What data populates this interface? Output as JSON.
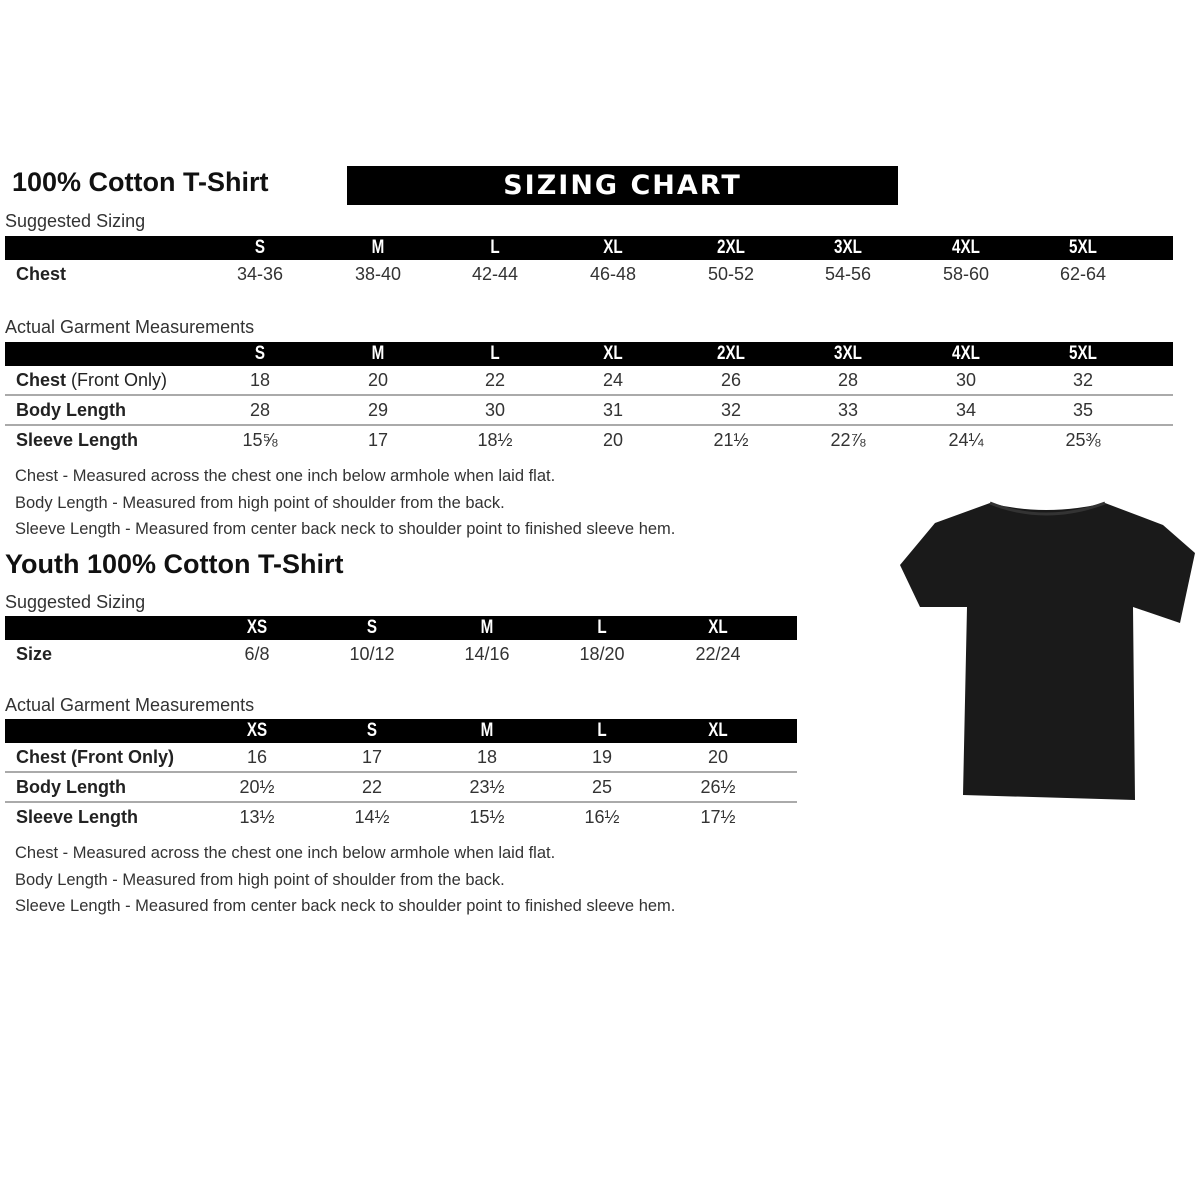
{
  "adult": {
    "title": "100% Cotton T-Shirt",
    "banner": "SIZING CHART",
    "suggested_label": "Suggested Sizing",
    "sizes": [
      "S",
      "M",
      "L",
      "XL",
      "2XL",
      "3XL",
      "4XL",
      "5XL"
    ],
    "suggested_rows": [
      {
        "label": "Chest",
        "values": [
          "34-36",
          "38-40",
          "42-44",
          "46-48",
          "50-52",
          "54-56",
          "58-60",
          "62-64"
        ]
      }
    ],
    "actual_label": "Actual Garment Measurements",
    "actual_rows": [
      {
        "label": "Chest",
        "label_note": " (Front Only)",
        "values": [
          "18",
          "20",
          "22",
          "24",
          "26",
          "28",
          "30",
          "32"
        ]
      },
      {
        "label": "Body Length",
        "values": [
          "28",
          "29",
          "30",
          "31",
          "32",
          "33",
          "34",
          "35"
        ]
      },
      {
        "label": "Sleeve Length",
        "values": [
          "15⅝",
          "17",
          "18½",
          "20",
          "21½",
          "22⅞",
          "24¼",
          "25⅜"
        ]
      }
    ],
    "notes": [
      "Chest - Measured across the chest one inch below armhole when laid flat.",
      "Body Length - Measured from high point of shoulder from the back.",
      "Sleeve Length - Measured from center back neck to shoulder point to finished sleeve hem."
    ]
  },
  "youth": {
    "title": "Youth 100% Cotton T-Shirt",
    "suggested_label": "Suggested Sizing",
    "sizes": [
      "XS",
      "S",
      "M",
      "L",
      "XL"
    ],
    "suggested_rows": [
      {
        "label": "Size",
        "values": [
          "6/8",
          "10/12",
          "14/16",
          "18/20",
          "22/24"
        ]
      }
    ],
    "actual_label": "Actual Garment Measurements",
    "actual_rows": [
      {
        "label": "Chest (Front Only)",
        "values": [
          "16",
          "17",
          "18",
          "19",
          "20"
        ]
      },
      {
        "label": "Body Length",
        "values": [
          "20½",
          "22",
          "23½",
          "25",
          "26½"
        ]
      },
      {
        "label": "Sleeve Length",
        "values": [
          "13½",
          "14½",
          "15½",
          "16½",
          "17½"
        ]
      }
    ],
    "notes": [
      "Chest - Measured across the chest one inch below armhole when laid flat.",
      "Body Length - Measured from high point of shoulder from the back.",
      "Sleeve Length - Measured from center back neck to shoulder point to finished sleeve hem."
    ]
  },
  "product_image": {
    "icon": "tshirt-icon",
    "color": "#1a1a1a"
  }
}
